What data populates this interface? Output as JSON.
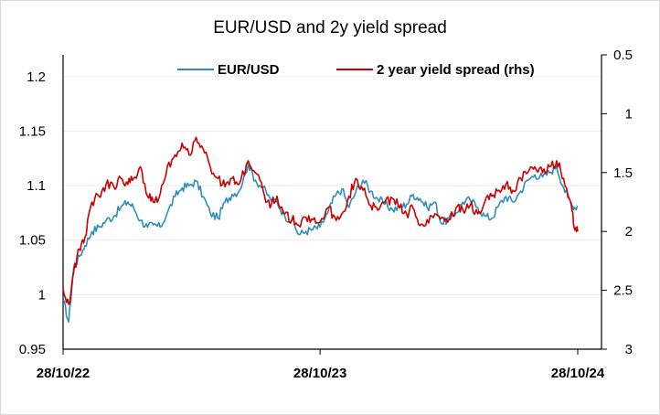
{
  "chart_data": {
    "type": "line",
    "title": "EUR/USD and 2y yield spread",
    "xlabel": "",
    "ylabel": "",
    "x_tick_labels": [
      "28/10/22",
      "28/10/23",
      "28/10/24"
    ],
    "x_range": [
      "28/10/22",
      "28/10/24"
    ],
    "y_left": {
      "ticks": [
        "0.95",
        "1",
        "1.05",
        "1.1",
        "1.15",
        "1.2"
      ],
      "range": [
        0.95,
        1.22
      ]
    },
    "y_right": {
      "ticks": [
        "0.5",
        "1",
        "1.5",
        "2",
        "2.5",
        "3"
      ],
      "range": [
        0.5,
        3
      ],
      "inverted": true
    },
    "legend_position": "top",
    "grid": "horizontal",
    "series": [
      {
        "name": "EUR/USD",
        "axis": "left",
        "color": "#2e8fb8",
        "points": [
          [
            "28/10/22",
            0.995
          ],
          [
            "05/11/22",
            0.975
          ],
          [
            "12/11/22",
            1.025
          ],
          [
            "20/11/22",
            1.035
          ],
          [
            "28/11/22",
            1.045
          ],
          [
            "08/12/22",
            1.058
          ],
          [
            "18/12/22",
            1.062
          ],
          [
            "28/12/22",
            1.068
          ],
          [
            "08/01/23",
            1.072
          ],
          [
            "18/01/23",
            1.08
          ],
          [
            "28/01/23",
            1.085
          ],
          [
            "05/02/23",
            1.08
          ],
          [
            "15/02/23",
            1.068
          ],
          [
            "25/02/23",
            1.062
          ],
          [
            "05/03/23",
            1.064
          ],
          [
            "15/03/23",
            1.062
          ],
          [
            "25/03/23",
            1.075
          ],
          [
            "05/04/23",
            1.09
          ],
          [
            "15/04/23",
            1.098
          ],
          [
            "25/04/23",
            1.1
          ],
          [
            "05/05/23",
            1.104
          ],
          [
            "15/05/23",
            1.09
          ],
          [
            "25/05/23",
            1.075
          ],
          [
            "05/06/23",
            1.07
          ],
          [
            "15/06/23",
            1.085
          ],
          [
            "25/06/23",
            1.092
          ],
          [
            "05/07/23",
            1.095
          ],
          [
            "18/07/23",
            1.12
          ],
          [
            "28/07/23",
            1.105
          ],
          [
            "08/08/23",
            1.098
          ],
          [
            "18/08/23",
            1.088
          ],
          [
            "28/08/23",
            1.085
          ],
          [
            "08/09/23",
            1.072
          ],
          [
            "18/09/23",
            1.068
          ],
          [
            "28/09/23",
            1.055
          ],
          [
            "08/10/23",
            1.058
          ],
          [
            "18/10/23",
            1.06
          ],
          [
            "28/10/23",
            1.062
          ],
          [
            "08/11/23",
            1.075
          ],
          [
            "18/11/23",
            1.09
          ],
          [
            "28/11/23",
            1.097
          ],
          [
            "08/12/23",
            1.08
          ],
          [
            "18/12/23",
            1.095
          ],
          [
            "28/12/23",
            1.105
          ],
          [
            "08/01/24",
            1.095
          ],
          [
            "18/01/24",
            1.088
          ],
          [
            "28/01/24",
            1.083
          ],
          [
            "08/02/24",
            1.078
          ],
          [
            "18/02/24",
            1.08
          ],
          [
            "28/02/24",
            1.083
          ],
          [
            "08/03/24",
            1.092
          ],
          [
            "18/03/24",
            1.088
          ],
          [
            "28/03/24",
            1.08
          ],
          [
            "08/04/24",
            1.085
          ],
          [
            "18/04/24",
            1.065
          ],
          [
            "28/04/24",
            1.07
          ],
          [
            "08/05/24",
            1.075
          ],
          [
            "18/05/24",
            1.085
          ],
          [
            "28/05/24",
            1.087
          ],
          [
            "08/06/24",
            1.08
          ],
          [
            "18/06/24",
            1.072
          ],
          [
            "28/06/24",
            1.07
          ],
          [
            "08/07/24",
            1.082
          ],
          [
            "18/07/24",
            1.09
          ],
          [
            "28/07/24",
            1.085
          ],
          [
            "08/08/24",
            1.095
          ],
          [
            "18/08/24",
            1.105
          ],
          [
            "28/08/24",
            1.11
          ],
          [
            "08/09/24",
            1.108
          ],
          [
            "18/09/24",
            1.112
          ],
          [
            "28/09/24",
            1.118
          ],
          [
            "08/10/24",
            1.098
          ],
          [
            "18/10/24",
            1.085
          ],
          [
            "23/10/24",
            1.08
          ],
          [
            "28/10/24",
            1.081
          ]
        ]
      },
      {
        "name": "2 year yield spread (rhs)",
        "axis": "right",
        "color": "#cc0000",
        "points": [
          [
            "28/10/22",
            2.48
          ],
          [
            "05/11/22",
            2.62
          ],
          [
            "12/11/22",
            2.35
          ],
          [
            "20/11/22",
            2.15
          ],
          [
            "28/11/22",
            2.05
          ],
          [
            "08/12/22",
            1.75
          ],
          [
            "18/12/22",
            1.7
          ],
          [
            "28/12/22",
            1.6
          ],
          [
            "08/01/23",
            1.62
          ],
          [
            "18/01/23",
            1.55
          ],
          [
            "28/01/23",
            1.6
          ],
          [
            "05/02/23",
            1.55
          ],
          [
            "15/02/23",
            1.45
          ],
          [
            "25/02/23",
            1.7
          ],
          [
            "05/03/23",
            1.75
          ],
          [
            "15/03/23",
            1.68
          ],
          [
            "25/03/23",
            1.45
          ],
          [
            "05/04/23",
            1.35
          ],
          [
            "15/04/23",
            1.25
          ],
          [
            "25/04/23",
            1.35
          ],
          [
            "05/05/23",
            1.2
          ],
          [
            "15/05/23",
            1.3
          ],
          [
            "25/05/23",
            1.45
          ],
          [
            "05/06/23",
            1.55
          ],
          [
            "15/06/23",
            1.62
          ],
          [
            "25/06/23",
            1.55
          ],
          [
            "05/07/23",
            1.6
          ],
          [
            "18/07/23",
            1.4
          ],
          [
            "28/07/23",
            1.5
          ],
          [
            "08/08/23",
            1.65
          ],
          [
            "18/08/23",
            1.8
          ],
          [
            "28/08/23",
            1.7
          ],
          [
            "08/09/23",
            1.85
          ],
          [
            "18/09/23",
            1.9
          ],
          [
            "28/09/23",
            1.95
          ],
          [
            "08/10/23",
            1.88
          ],
          [
            "18/10/23",
            1.9
          ],
          [
            "28/10/23",
            1.92
          ],
          [
            "08/11/23",
            1.8
          ],
          [
            "18/11/23",
            1.88
          ],
          [
            "28/11/23",
            1.85
          ],
          [
            "08/12/23",
            1.7
          ],
          [
            "18/12/23",
            1.55
          ],
          [
            "28/12/23",
            1.65
          ],
          [
            "08/01/24",
            1.78
          ],
          [
            "18/01/24",
            1.82
          ],
          [
            "28/01/24",
            1.75
          ],
          [
            "08/02/24",
            1.72
          ],
          [
            "18/02/24",
            1.8
          ],
          [
            "28/02/24",
            1.85
          ],
          [
            "08/03/24",
            1.8
          ],
          [
            "18/03/24",
            1.95
          ],
          [
            "28/03/24",
            1.9
          ],
          [
            "08/04/24",
            1.85
          ],
          [
            "18/04/24",
            1.88
          ],
          [
            "28/04/24",
            1.9
          ],
          [
            "08/05/24",
            1.8
          ],
          [
            "18/05/24",
            1.82
          ],
          [
            "28/05/24",
            1.78
          ],
          [
            "08/06/24",
            1.85
          ],
          [
            "18/06/24",
            1.75
          ],
          [
            "28/06/24",
            1.7
          ],
          [
            "08/07/24",
            1.65
          ],
          [
            "18/07/24",
            1.6
          ],
          [
            "28/07/24",
            1.65
          ],
          [
            "08/08/24",
            1.55
          ],
          [
            "18/08/24",
            1.5
          ],
          [
            "28/08/24",
            1.45
          ],
          [
            "08/09/24",
            1.5
          ],
          [
            "18/09/24",
            1.45
          ],
          [
            "28/09/24",
            1.4
          ],
          [
            "08/10/24",
            1.55
          ],
          [
            "18/10/24",
            1.75
          ],
          [
            "23/10/24",
            1.97
          ],
          [
            "28/10/24",
            2.0
          ]
        ]
      }
    ]
  }
}
